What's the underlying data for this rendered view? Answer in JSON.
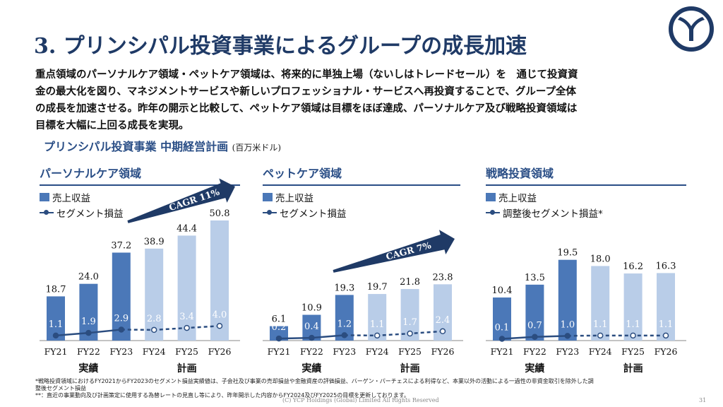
{
  "title": "3. プリンシパル投資事業によるグループの成長加速",
  "intro_lines": [
    "重点領域のパーソナルケア領域・ペットケア領域は、将来的に単独上場（ないしはトレードセール）を　通じて投資資",
    "金の最大化を図り、マネジメントサービスや新しいプロフェッショナル・サービスへ再投資することで、グループ全体",
    "の成長を加速させる。昨年の開示と比較して、ペットケア領域は目標をほぼ達成、パーソナルケア及び戦略投資領域は",
    "目標を大幅に上回る成長を実現。"
  ],
  "section_heading": "プリンシパル投資事業 中期経営計画",
  "section_unit": "(百万米ドル)",
  "colors": {
    "accent": "#1f3a66",
    "actual_bar": "#4b78b8",
    "plan_bar": "#b9cde8",
    "line": "#2b4d80"
  },
  "chart_data": [
    {
      "type": "bar",
      "title": "パーソナルケア領域",
      "categories": [
        "FY21",
        "FY22",
        "FY23",
        "FY24",
        "FY25",
        "FY26"
      ],
      "group_labels": [
        "実績",
        "計画"
      ],
      "series": [
        {
          "name": "売上収益",
          "values": [
            18.7,
            24.0,
            37.2,
            38.9,
            44.4,
            50.8
          ],
          "labels": [
            "18.7",
            "24.0",
            "37.2",
            "38.9",
            "44.4",
            "50.8"
          ]
        },
        {
          "name": "セグメント損益",
          "values": [
            1.1,
            1.9,
            2.9,
            2.8,
            3.4,
            4.0
          ],
          "labels": [
            "1.1",
            "1.9",
            "2.9",
            "2.8",
            "3.4",
            "4.0"
          ]
        }
      ],
      "cagr": "CAGR 11%",
      "ymax": 50.8
    },
    {
      "type": "bar",
      "title": "ペットケア領域",
      "categories": [
        "FY21",
        "FY22",
        "FY23",
        "FY24",
        "FY25",
        "FY26"
      ],
      "group_labels": [
        "実績",
        "計画"
      ],
      "series": [
        {
          "name": "売上収益",
          "values": [
            6.1,
            10.9,
            19.3,
            19.7,
            21.8,
            23.8
          ],
          "labels": [
            "6.1",
            "10.9",
            "19.3",
            "19.7",
            "21.8",
            "23.8"
          ]
        },
        {
          "name": "セグメント損益",
          "values": [
            0.2,
            0.4,
            1.2,
            1.1,
            1.7,
            2.4
          ],
          "labels": [
            "0.2",
            "0.4",
            "1.2",
            "1.1",
            "1.7",
            "2.4"
          ]
        }
      ],
      "cagr": "CAGR 7%",
      "ymax": 50.8
    },
    {
      "type": "bar",
      "title": "戦略投資領域",
      "categories": [
        "FY21",
        "FY22",
        "FY23",
        "FY24",
        "FY25",
        "FY26"
      ],
      "group_labels": [
        "実績",
        "計画"
      ],
      "series": [
        {
          "name": "売上収益",
          "values": [
            10.4,
            13.5,
            19.5,
            18.0,
            16.2,
            16.3
          ],
          "labels": [
            "10.4",
            "13.5",
            "19.5",
            "18.0",
            "16.2",
            "16.3"
          ]
        },
        {
          "name": "調整後セグメント損益*",
          "values": [
            0.1,
            0.7,
            1.0,
            1.1,
            1.1,
            1.1
          ],
          "labels": [
            "0.1",
            "0.7",
            "1.0",
            "1.1",
            "1.1",
            "1.1"
          ]
        }
      ],
      "cagr": "",
      "ymax": 29
    }
  ],
  "footnotes": [
    "*戦略投資領域におけるFY2021からFY2023のセグメント損益実績値は、子会社及び事業の売却損益や金融資産の評価損益、バーゲン・パーチェスによる利得など、本業以外の活動による一過性の非資金取引を除外した調",
    "整後セグメント損益",
    "**：直近の事業動向及び計画策定に使用する為替レートの見直し等により、昨年開示した内容からFY2024及びFY2025の目標を更新しております。"
  ],
  "copyright": "(C) YCP Holdings (Global) Limited All Rights Reserved",
  "page_number": "31"
}
